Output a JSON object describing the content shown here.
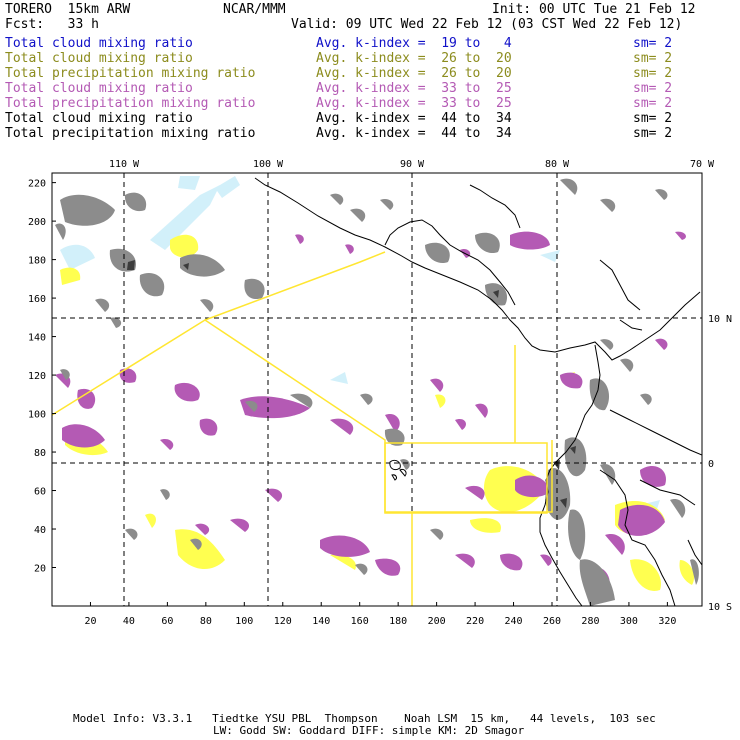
{
  "header": {
    "model": "TORERO  15km ARW",
    "org": "NCAR/MMM",
    "init": "Init: 00 UTC Tue 21 Feb 12",
    "fcst": "Fcst:   33 h",
    "valid": "Valid: 09 UTC Wed 22 Feb 12 (03 CST Wed 22 Feb 12)"
  },
  "legend": [
    {
      "field": "Total cloud mixing ratio",
      "kindex": "Avg. k-index =  19 to   4",
      "sm": "sm= 2",
      "color": "#1010c8"
    },
    {
      "field": "Total cloud mixing ratio",
      "kindex": "Avg. k-index =  26 to  20",
      "sm": "sm= 2",
      "color": "#8c8c1e"
    },
    {
      "field": "Total precipitation mixing ratio",
      "kindex": "Avg. k-index =  26 to  20",
      "sm": "sm= 2",
      "color": "#8c8c1e"
    },
    {
      "field": "Total cloud mixing ratio",
      "kindex": "Avg. k-index =  33 to  25",
      "sm": "sm= 2",
      "color": "#b45ab4"
    },
    {
      "field": "Total precipitation mixing ratio",
      "kindex": "Avg. k-index =  33 to  25",
      "sm": "sm= 2",
      "color": "#b45ab4"
    },
    {
      "field": "Total cloud mixing ratio",
      "kindex": "Avg. k-index =  44 to  34",
      "sm": "sm= 2",
      "color": "#000000"
    },
    {
      "field": "Total precipitation mixing ratio",
      "kindex": "Avg. k-index =  44 to  34",
      "sm": "sm= 2",
      "color": "#000000"
    }
  ],
  "map": {
    "lon_labels": [
      "110 W",
      "100 W",
      "90 W",
      "80 W",
      "70 W"
    ],
    "lat_labels": [
      "10 N",
      "0",
      "10 S"
    ],
    "y_ticks": [
      "220",
      "200",
      "180",
      "160",
      "140",
      "120",
      "100",
      "80",
      "60",
      "40",
      "20"
    ],
    "x_ticks": [
      "20",
      "40",
      "60",
      "80",
      "100",
      "120",
      "140",
      "160",
      "180",
      "200",
      "220",
      "240",
      "260",
      "280",
      "300",
      "320"
    ],
    "colors": {
      "grey": "#8c8c8c",
      "purple": "#b45ab4",
      "yellow": "#ffff50",
      "lightblue": "#d2f0fa",
      "domain_line": "#ffe632",
      "coast": "#000000"
    }
  },
  "footer": {
    "line1": "Model Info: V3.3.1   Tiedtke YSU PBL  Thompson    Noah LSM  15 km,   44 levels,  103 sec",
    "line2": "LW: Godd SW: Goddard DIFF: simple KM: 2D Smagor"
  }
}
